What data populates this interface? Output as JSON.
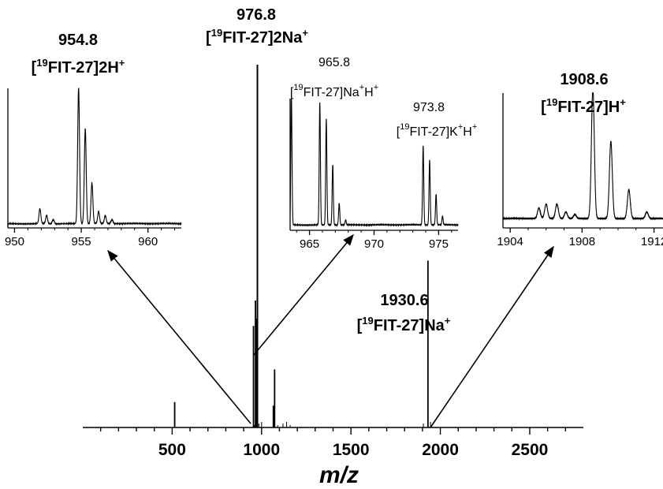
{
  "chart_data": [
    {
      "id": "main",
      "type": "line",
      "xlabel": "m/z",
      "xlim": [
        0,
        2800
      ],
      "xticks": [
        "500",
        "1000",
        "1500",
        "2000",
        "2500"
      ],
      "peaks": [
        {
          "mz": 514,
          "intensity": 0.07
        },
        {
          "mz": 954.8,
          "intensity": 0.28
        },
        {
          "mz": 965.8,
          "intensity": 0.35
        },
        {
          "mz": 973.8,
          "intensity": 0.3
        },
        {
          "mz": 976.8,
          "intensity": 1.0
        },
        {
          "mz": 1066,
          "intensity": 0.06
        },
        {
          "mz": 1073,
          "intensity": 0.16
        },
        {
          "mz": 1930.6,
          "intensity": 0.46
        }
      ],
      "annotations": [
        {
          "mass": "976.8",
          "ion": "[19FIT-27]2Na+"
        },
        {
          "mass": "1930.6",
          "ion": "[19FIT-27]Na+"
        }
      ]
    },
    {
      "id": "inset1",
      "type": "line",
      "xlim": [
        949.5,
        962.5
      ],
      "xticks": [
        "950",
        "955",
        "960"
      ],
      "annotations": [
        {
          "mass": "954.8",
          "ion": "[19FIT-27]2H+"
        }
      ],
      "peaks": [
        {
          "mz": 951.9,
          "intensity": 0.11
        },
        {
          "mz": 952.4,
          "intensity": 0.06
        },
        {
          "mz": 952.9,
          "intensity": 0.03
        },
        {
          "mz": 954.8,
          "intensity": 1.0
        },
        {
          "mz": 955.3,
          "intensity": 0.7
        },
        {
          "mz": 955.8,
          "intensity": 0.3
        },
        {
          "mz": 956.3,
          "intensity": 0.09
        },
        {
          "mz": 956.8,
          "intensity": 0.06
        },
        {
          "mz": 957.3,
          "intensity": 0.03
        }
      ]
    },
    {
      "id": "inset2",
      "type": "line",
      "xlim": [
        963.5,
        976.5
      ],
      "xticks": [
        "965",
        "970",
        "975"
      ],
      "annotations": [
        {
          "mass": "965.8",
          "ion": "[19FIT-27]Na+H+"
        },
        {
          "mass": "973.8",
          "ion": "[19FIT-27]K+H+"
        }
      ],
      "peaks": [
        {
          "mz": 963.6,
          "intensity": 1.0
        },
        {
          "mz": 965.8,
          "intensity": 0.96
        },
        {
          "mz": 966.3,
          "intensity": 0.83
        },
        {
          "mz": 966.8,
          "intensity": 0.47
        },
        {
          "mz": 967.3,
          "intensity": 0.17
        },
        {
          "mz": 967.8,
          "intensity": 0.04
        },
        {
          "mz": 973.8,
          "intensity": 0.62
        },
        {
          "mz": 974.3,
          "intensity": 0.51
        },
        {
          "mz": 974.8,
          "intensity": 0.24
        },
        {
          "mz": 975.3,
          "intensity": 0.07
        }
      ]
    },
    {
      "id": "inset3",
      "type": "line",
      "xlim": [
        1903.6,
        1912.5
      ],
      "xticks": [
        "1904",
        "1908",
        "1912"
      ],
      "annotations": [
        {
          "mass": "1908.6",
          "ion": "[19FIT-27]H+"
        }
      ],
      "peaks": [
        {
          "mz": 1905.6,
          "intensity": 0.08
        },
        {
          "mz": 1906.0,
          "intensity": 0.11
        },
        {
          "mz": 1906.6,
          "intensity": 0.11
        },
        {
          "mz": 1907.1,
          "intensity": 0.05
        },
        {
          "mz": 1907.6,
          "intensity": 0.03
        },
        {
          "mz": 1908.6,
          "intensity": 1.0
        },
        {
          "mz": 1909.6,
          "intensity": 0.59
        },
        {
          "mz": 1910.6,
          "intensity": 0.22
        },
        {
          "mz": 1911.6,
          "intensity": 0.05
        }
      ]
    }
  ]
}
